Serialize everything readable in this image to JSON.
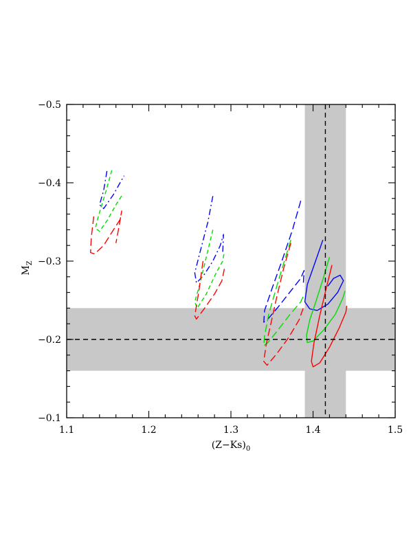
{
  "chart_data": {
    "type": "line",
    "title": "",
    "xlabel_main": "(Z−Ks)",
    "xlabel_sub": "0",
    "ylabel_main": "M",
    "ylabel_sub": "Z",
    "xlim": [
      1.1,
      1.5
    ],
    "ylim": [
      -0.5,
      -0.1
    ],
    "y_inverted": true,
    "grid": false,
    "x_ticks": [
      1.1,
      1.2,
      1.3,
      1.4,
      1.5
    ],
    "x_tick_labels": [
      "1.1",
      "1.2",
      "1.3",
      "1.4",
      "1.5"
    ],
    "y_ticks": [
      -0.5,
      -0.4,
      -0.3,
      -0.2,
      -0.1
    ],
    "y_tick_labels": [
      "−0.5",
      "−0.4",
      "−0.3",
      "−0.2",
      "−0.1"
    ],
    "reference_lines": {
      "x": 1.415,
      "y": -0.2
    },
    "bands": {
      "x": [
        1.39,
        1.44
      ],
      "y": [
        -0.24,
        -0.16
      ],
      "color": "#c8c8c8"
    },
    "series": [
      {
        "group": 1,
        "color": "#0000ff",
        "dash": "dashdot",
        "points": [
          [
            1.149,
            -0.415
          ],
          [
            1.145,
            -0.39
          ],
          [
            1.14,
            -0.372
          ],
          [
            1.145,
            -0.367
          ],
          [
            1.157,
            -0.385
          ],
          [
            1.165,
            -0.4
          ],
          [
            1.17,
            -0.409
          ]
        ]
      },
      {
        "group": 1,
        "color": "#00dd00",
        "dash": "dash",
        "points": [
          [
            1.155,
            -0.416
          ],
          [
            1.148,
            -0.39
          ],
          [
            1.138,
            -0.355
          ],
          [
            1.135,
            -0.342
          ],
          [
            1.14,
            -0.338
          ],
          [
            1.15,
            -0.353
          ],
          [
            1.16,
            -0.372
          ],
          [
            1.168,
            -0.385
          ]
        ]
      },
      {
        "group": 1,
        "color": "#ff0000",
        "dash": "longdash",
        "points": [
          [
            1.133,
            -0.357
          ],
          [
            1.13,
            -0.33
          ],
          [
            1.129,
            -0.311
          ],
          [
            1.134,
            -0.309
          ],
          [
            1.145,
            -0.32
          ],
          [
            1.157,
            -0.34
          ],
          [
            1.165,
            -0.353
          ],
          [
            1.167,
            -0.364
          ],
          [
            1.163,
            -0.34
          ],
          [
            1.16,
            -0.323
          ]
        ]
      },
      {
        "group": 2,
        "color": "#0000ff",
        "dash": "dashdot",
        "points": [
          [
            1.278,
            -0.383
          ],
          [
            1.272,
            -0.35
          ],
          [
            1.262,
            -0.31
          ],
          [
            1.256,
            -0.285
          ],
          [
            1.258,
            -0.272
          ],
          [
            1.267,
            -0.282
          ],
          [
            1.278,
            -0.3
          ],
          [
            1.287,
            -0.32
          ],
          [
            1.291,
            -0.334
          ],
          [
            1.29,
            -0.31
          ]
        ]
      },
      {
        "group": 2,
        "color": "#00dd00",
        "dash": "dash",
        "points": [
          [
            1.278,
            -0.34
          ],
          [
            1.27,
            -0.305
          ],
          [
            1.262,
            -0.27
          ],
          [
            1.256,
            -0.248
          ],
          [
            1.259,
            -0.24
          ],
          [
            1.27,
            -0.258
          ],
          [
            1.282,
            -0.285
          ],
          [
            1.29,
            -0.3
          ],
          [
            1.292,
            -0.312
          ]
        ]
      },
      {
        "group": 2,
        "color": "#ff0000",
        "dash": "longdash",
        "points": [
          [
            1.266,
            -0.3
          ],
          [
            1.261,
            -0.262
          ],
          [
            1.256,
            -0.23
          ],
          [
            1.258,
            -0.226
          ],
          [
            1.268,
            -0.24
          ],
          [
            1.28,
            -0.258
          ],
          [
            1.289,
            -0.275
          ],
          [
            1.292,
            -0.29
          ]
        ]
      },
      {
        "group": 3,
        "color": "#0000ff",
        "dash": "longdash",
        "points": [
          [
            1.385,
            -0.377
          ],
          [
            1.375,
            -0.34
          ],
          [
            1.362,
            -0.3
          ],
          [
            1.35,
            -0.265
          ],
          [
            1.341,
            -0.237
          ],
          [
            1.34,
            -0.222
          ],
          [
            1.345,
            -0.226
          ],
          [
            1.358,
            -0.242
          ],
          [
            1.373,
            -0.262
          ],
          [
            1.385,
            -0.278
          ],
          [
            1.389,
            -0.288
          ],
          [
            1.388,
            -0.268
          ]
        ]
      },
      {
        "group": 3,
        "color": "#00dd00",
        "dash": "longdash",
        "points": [
          [
            1.373,
            -0.327
          ],
          [
            1.365,
            -0.3
          ],
          [
            1.355,
            -0.265
          ],
          [
            1.346,
            -0.232
          ],
          [
            1.341,
            -0.205
          ],
          [
            1.34,
            -0.192
          ],
          [
            1.345,
            -0.196
          ],
          [
            1.358,
            -0.213
          ],
          [
            1.372,
            -0.232
          ],
          [
            1.385,
            -0.248
          ],
          [
            1.388,
            -0.255
          ]
        ]
      },
      {
        "group": 3,
        "color": "#ff0000",
        "dash": "longdash",
        "points": [
          [
            1.373,
            -0.323
          ],
          [
            1.364,
            -0.29
          ],
          [
            1.356,
            -0.255
          ],
          [
            1.349,
            -0.222
          ],
          [
            1.343,
            -0.194
          ],
          [
            1.34,
            -0.172
          ],
          [
            1.344,
            -0.167
          ],
          [
            1.356,
            -0.182
          ],
          [
            1.37,
            -0.202
          ],
          [
            1.383,
            -0.225
          ],
          [
            1.389,
            -0.243
          ]
        ]
      },
      {
        "group": 4,
        "color": "#0000ff",
        "dash": "solid",
        "points": [
          [
            1.412,
            -0.327
          ],
          [
            1.403,
            -0.3
          ],
          [
            1.393,
            -0.27
          ],
          [
            1.39,
            -0.248
          ],
          [
            1.396,
            -0.239
          ],
          [
            1.405,
            -0.237
          ],
          [
            1.418,
            -0.245
          ],
          [
            1.43,
            -0.26
          ],
          [
            1.437,
            -0.275
          ],
          [
            1.433,
            -0.282
          ],
          [
            1.425,
            -0.278
          ],
          [
            1.418,
            -0.268
          ]
        ]
      },
      {
        "group": 4,
        "color": "#00dd00",
        "dash": "solid",
        "points": [
          [
            1.42,
            -0.305
          ],
          [
            1.413,
            -0.28
          ],
          [
            1.404,
            -0.25
          ],
          [
            1.396,
            -0.225
          ],
          [
            1.392,
            -0.205
          ],
          [
            1.393,
            -0.196
          ],
          [
            1.4,
            -0.198
          ],
          [
            1.413,
            -0.212
          ],
          [
            1.427,
            -0.232
          ],
          [
            1.436,
            -0.252
          ],
          [
            1.439,
            -0.262
          ]
        ]
      },
      {
        "group": 4,
        "color": "#ff0000",
        "dash": "solid",
        "points": [
          [
            1.423,
            -0.295
          ],
          [
            1.416,
            -0.265
          ],
          [
            1.408,
            -0.23
          ],
          [
            1.401,
            -0.195
          ],
          [
            1.398,
            -0.172
          ],
          [
            1.4,
            -0.165
          ],
          [
            1.408,
            -0.17
          ],
          [
            1.42,
            -0.19
          ],
          [
            1.432,
            -0.215
          ],
          [
            1.44,
            -0.235
          ],
          [
            1.441,
            -0.243
          ]
        ]
      }
    ]
  }
}
